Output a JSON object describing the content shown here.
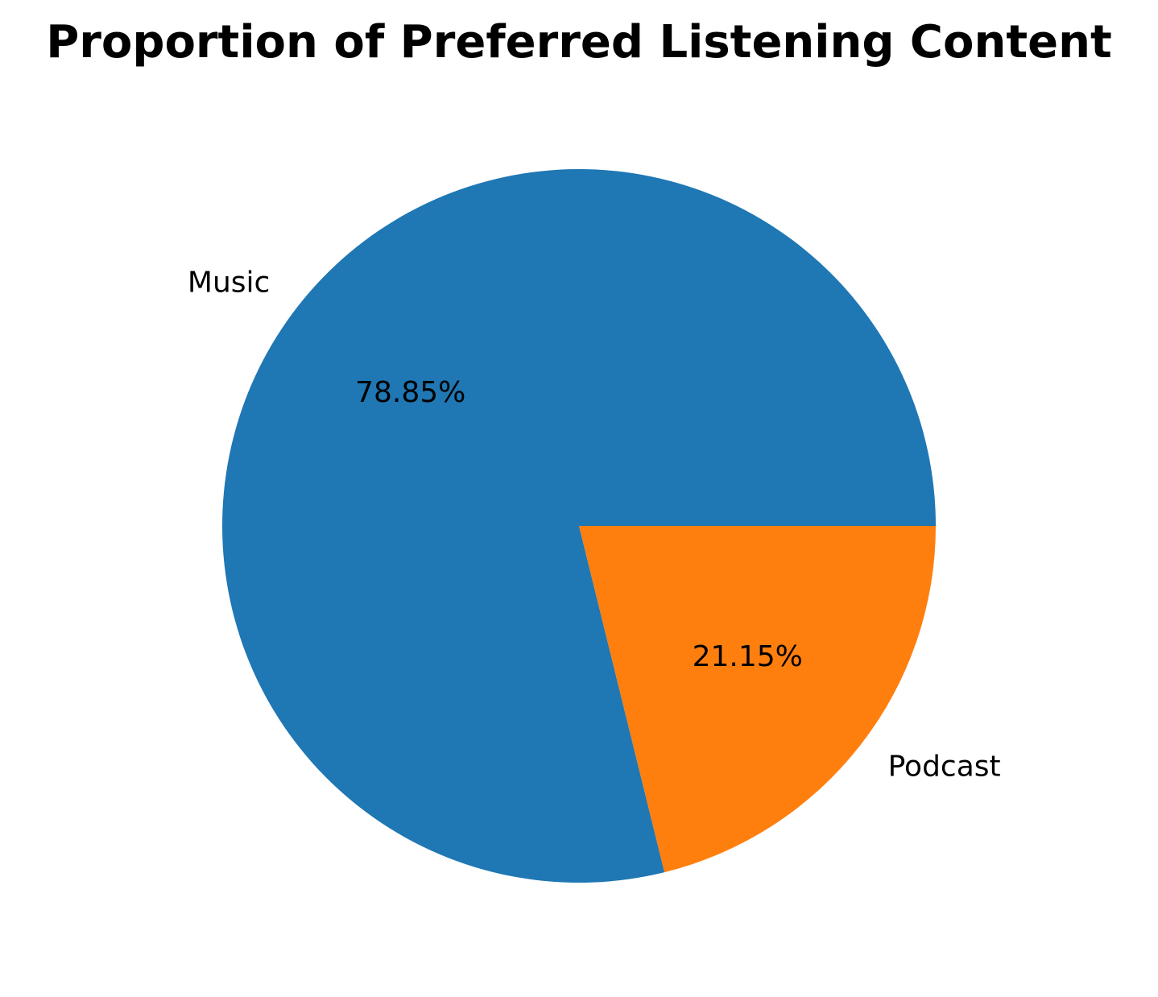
{
  "chart_data": {
    "type": "pie",
    "title": "Proportion of Preferred Listening Content",
    "slices": [
      {
        "label": "Music",
        "value": 78.85,
        "pct_label": "78.85%",
        "color": "#1f77b4"
      },
      {
        "label": "Podcast",
        "value": 21.15,
        "pct_label": "21.15%",
        "color": "#ff7f0e"
      }
    ],
    "start_angle_deg": 0,
    "direction": "counterclockwise",
    "legend": "none"
  }
}
